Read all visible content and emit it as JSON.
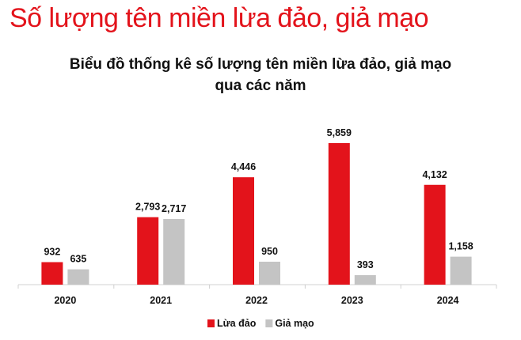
{
  "heading": "Số lượng tên miền lừa đảo, giả mạo",
  "chart_data": {
    "type": "bar",
    "title_line1": "Biểu đồ thống kê số lượng tên miền lừa đảo, giả mạo",
    "title_line2": "qua các năm",
    "categories": [
      "2020",
      "2021",
      "2022",
      "2023",
      "2024"
    ],
    "series": [
      {
        "name": "Lừa đảo",
        "color": "#e3131b",
        "values": [
          932,
          2793,
          4446,
          5859,
          4132
        ],
        "labels": [
          "932",
          "2,793",
          "4,446",
          "5,859",
          "4,132"
        ]
      },
      {
        "name": "Giả mạo",
        "color": "#c4c4c4",
        "values": [
          635,
          2717,
          950,
          393,
          1158
        ],
        "labels": [
          "635",
          "2,717",
          "950",
          "393",
          "1,158"
        ]
      }
    ],
    "ylim": [
      0,
      5859
    ],
    "grid": false,
    "legend": "bottom-center"
  }
}
